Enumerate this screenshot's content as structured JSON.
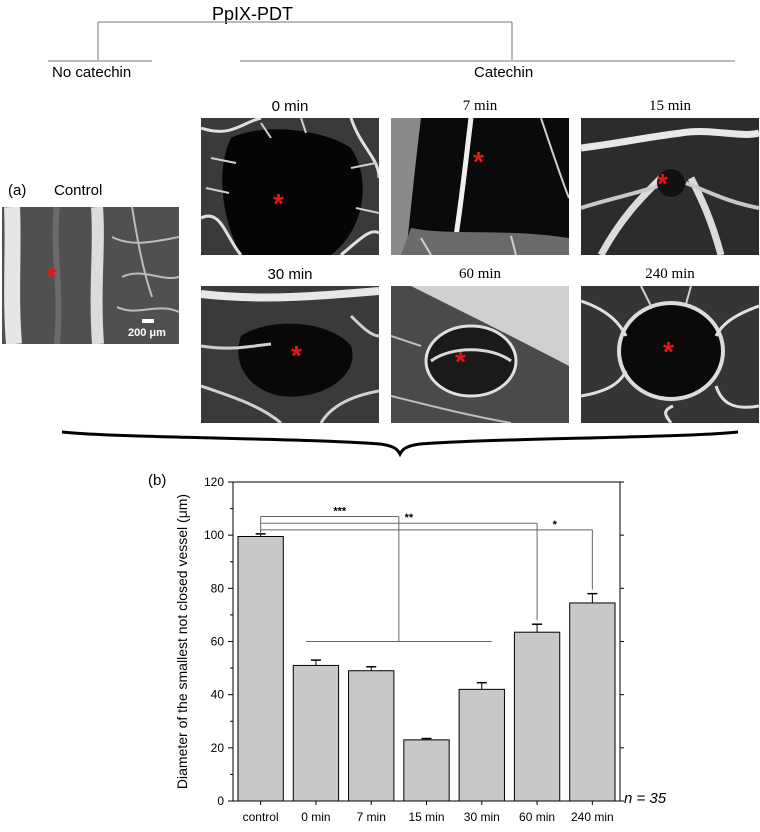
{
  "header": {
    "title": "PpIX-PDT",
    "left_group": "No catechin",
    "right_group": "Catechin"
  },
  "panel_a": {
    "label": "(a)",
    "control_title": "Control",
    "scale_bar": "200 μm",
    "images": [
      {
        "title": "0 min"
      },
      {
        "title": "7 min"
      },
      {
        "title": "15 min"
      },
      {
        "title": "30 min"
      },
      {
        "title": "60 min"
      },
      {
        "title": "240 min"
      }
    ],
    "marker_color": "#e0181b"
  },
  "panel_b": {
    "label": "(b)",
    "n_label": "n = 35"
  },
  "chart_data": {
    "type": "bar",
    "categories": [
      "control",
      "0 min",
      "7 min",
      "15 min",
      "30 min",
      "60 min",
      "240 min"
    ],
    "values": [
      99.5,
      51,
      49,
      23,
      42,
      63.5,
      74.5
    ],
    "errors": [
      1.0,
      2.0,
      1.5,
      0.5,
      2.5,
      3.0,
      3.5
    ],
    "ylabel": "Diameter of the smallest not closed vessel (μm)",
    "ylim": [
      0,
      120
    ],
    "yticks": [
      0,
      20,
      40,
      60,
      80,
      100,
      120
    ],
    "bar_color": "#c8c8c8",
    "significance": [
      "***",
      "**",
      "*"
    ]
  }
}
